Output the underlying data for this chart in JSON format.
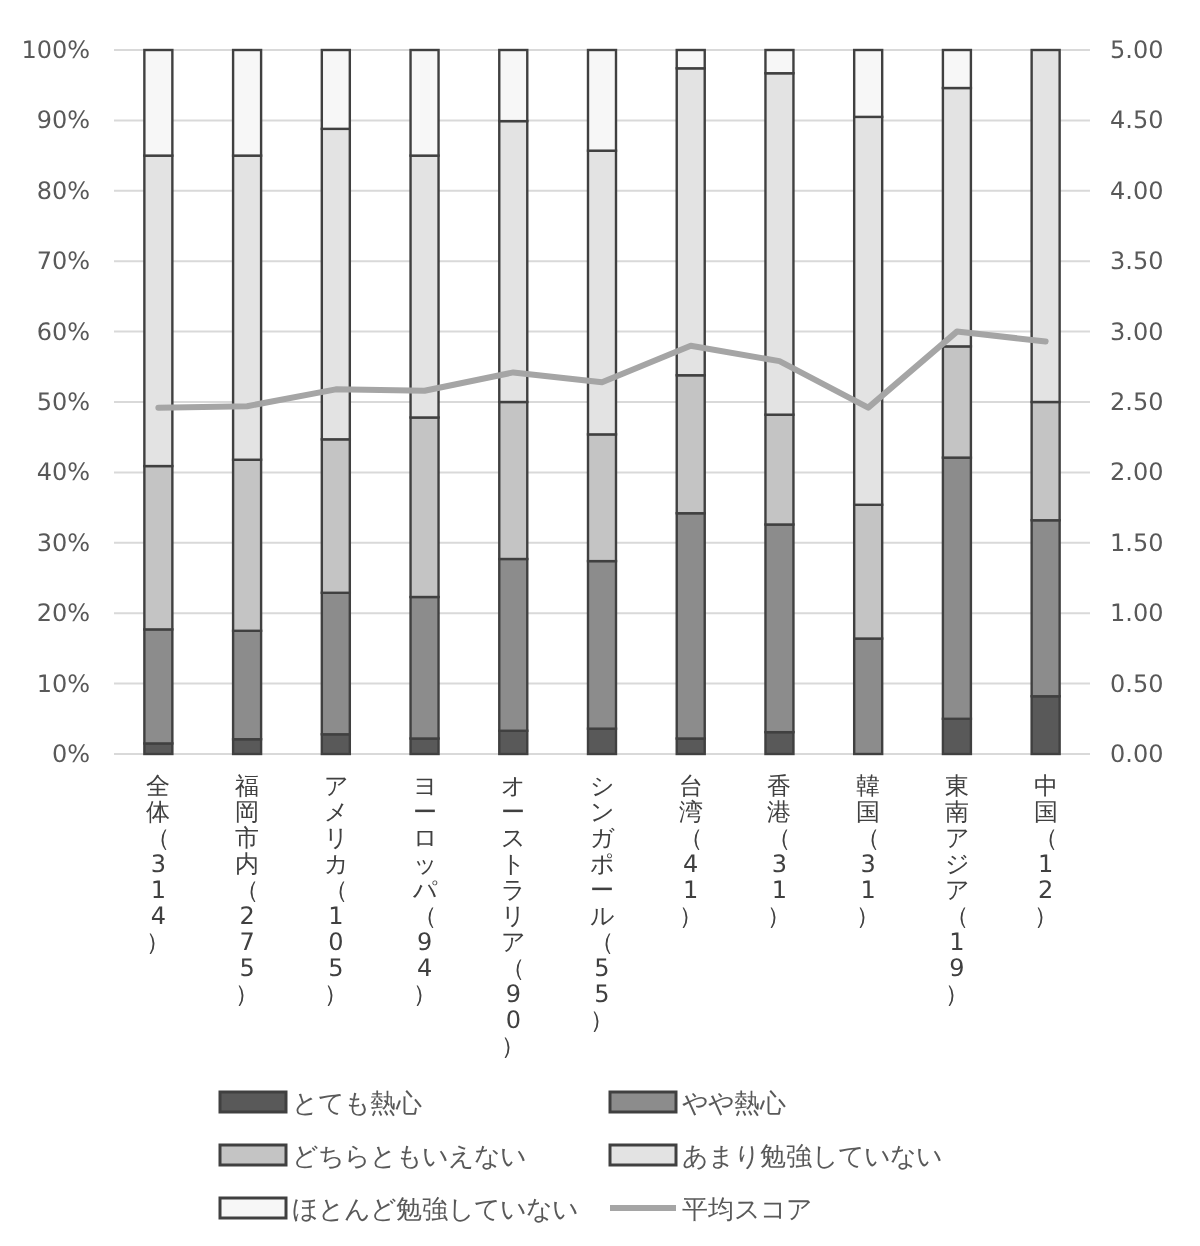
{
  "chart_data": {
    "type": "bar",
    "stacked": true,
    "categories": [
      "全体（314）",
      "福岡市内（275）",
      "アメリカ（105）",
      "ヨーロッパ（94）",
      "オーストラリア（90）",
      "シンガポール（55）",
      "台湾（41）",
      "香港（31）",
      "韓国（31）",
      "東南アジア（19）",
      "中国（12）"
    ],
    "series": [
      {
        "name": "とても熱心",
        "color": "#595959",
        "values": [
          1.5,
          2.1,
          2.8,
          2.2,
          3.3,
          3.6,
          2.2,
          3.1,
          0,
          5.0,
          8.2
        ]
      },
      {
        "name": "やや熱心",
        "color": "#8c8c8c",
        "values": [
          16.2,
          15.4,
          20.1,
          20.1,
          24.4,
          23.8,
          32.0,
          29.5,
          16.4,
          37.1,
          25.0
        ]
      },
      {
        "name": "どちらともいえない",
        "color": "#c4c4c4",
        "values": [
          23.2,
          24.3,
          21.8,
          25.5,
          22.3,
          18.0,
          19.6,
          15.6,
          19.0,
          15.8,
          16.8
        ]
      },
      {
        "name": "あまり勉強していない",
        "color": "#e3e3e3",
        "values": [
          44.1,
          43.2,
          44.1,
          37.2,
          39.9,
          40.3,
          43.6,
          48.5,
          55.1,
          36.7,
          50.0
        ]
      },
      {
        "name": "ほとんど勉強していない",
        "color": "#f7f7f7",
        "values": [
          15.0,
          15.0,
          11.2,
          15.0,
          10.1,
          14.3,
          2.6,
          3.3,
          9.5,
          5.4,
          0
        ]
      },
      {
        "name": "平均スコア",
        "type": "line",
        "axis": "y2",
        "color": "#a5a5a5",
        "values": [
          2.46,
          2.47,
          2.59,
          2.58,
          2.71,
          2.64,
          2.9,
          2.79,
          2.46,
          3.0,
          2.93
        ]
      }
    ],
    "ylim": [
      0,
      100
    ],
    "yticks": [
      {
        "value": 0,
        "label": "0%"
      },
      {
        "value": 10,
        "label": "10%"
      },
      {
        "value": 20,
        "label": "20%"
      },
      {
        "value": 30,
        "label": "30%"
      },
      {
        "value": 40,
        "label": "40%"
      },
      {
        "value": 50,
        "label": "50%"
      },
      {
        "value": 60,
        "label": "60%"
      },
      {
        "value": 70,
        "label": "70%"
      },
      {
        "value": 80,
        "label": "80%"
      },
      {
        "value": 90,
        "label": "90%"
      },
      {
        "value": 100,
        "label": "100%"
      }
    ],
    "y2lim": [
      0,
      5
    ],
    "y2ticks": [
      {
        "value": 0,
        "label": "0.00"
      },
      {
        "value": 0.5,
        "label": "0.50"
      },
      {
        "value": 1,
        "label": "1.00"
      },
      {
        "value": 1.5,
        "label": "1.50"
      },
      {
        "value": 2,
        "label": "2.00"
      },
      {
        "value": 2.5,
        "label": "2.50"
      },
      {
        "value": 3,
        "label": "3.00"
      },
      {
        "value": 3.5,
        "label": "3.50"
      },
      {
        "value": 4,
        "label": "4.00"
      },
      {
        "value": 4.5,
        "label": "4.50"
      },
      {
        "value": 5,
        "label": "5.00"
      }
    ],
    "grid": "y",
    "legend": "bottom"
  }
}
